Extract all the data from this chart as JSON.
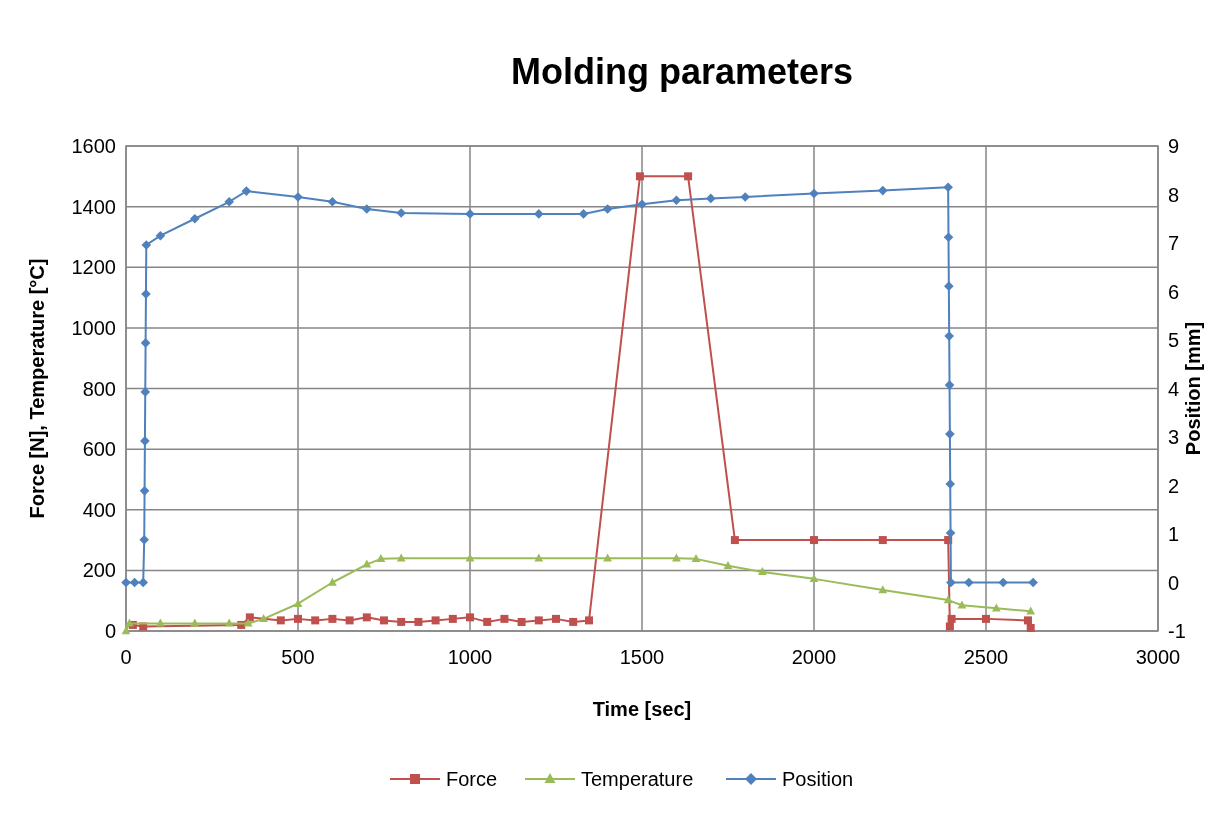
{
  "chart_data": {
    "type": "line",
    "title": "Molding parameters",
    "xlabel": "Time [sec]",
    "ylabel": "Force [N], Temperature [°C]",
    "y2label": "Position [mm]",
    "xlim": [
      0,
      3000
    ],
    "xticks": [
      0,
      500,
      1000,
      1500,
      2000,
      2500,
      3000
    ],
    "ylim": [
      0,
      1600
    ],
    "yticks": [
      0,
      200,
      400,
      600,
      800,
      1000,
      1200,
      1400,
      1600
    ],
    "y2lim": [
      -1,
      9
    ],
    "y2ticks": [
      -1,
      0,
      1,
      2,
      3,
      4,
      5,
      6,
      7,
      8,
      9
    ],
    "grid": true,
    "legend": "bottom",
    "series": [
      {
        "name": "Force",
        "color": "#c0504d",
        "marker": "square",
        "x": [
          20,
          50,
          335,
          360,
          450,
          500,
          550,
          600,
          650,
          700,
          750,
          800,
          850,
          900,
          950,
          1000,
          1050,
          1100,
          1150,
          1200,
          1250,
          1300,
          1346,
          1494,
          1634,
          1770,
          2000,
          2200,
          2390,
          2395,
          2400,
          2500,
          2622,
          2630
        ],
        "values": [
          20,
          15,
          20,
          45,
          35,
          40,
          35,
          40,
          35,
          45,
          35,
          30,
          30,
          35,
          40,
          45,
          30,
          40,
          30,
          35,
          40,
          30,
          35,
          1500,
          1500,
          300,
          300,
          300,
          300,
          15,
          40,
          40,
          35,
          10
        ]
      },
      {
        "name": "Temperature",
        "color": "#9bbb59",
        "marker": "triangle",
        "x": [
          0,
          10,
          100,
          200,
          300,
          355,
          400,
          500,
          600,
          700,
          741,
          800,
          1000,
          1200,
          1400,
          1600,
          1657,
          1750,
          1850,
          2000,
          2200,
          2390,
          2430,
          2530,
          2630
        ],
        "values": [
          0,
          25,
          25,
          25,
          25,
          25,
          40,
          90,
          160,
          220,
          238,
          240,
          240,
          240,
          240,
          240,
          238,
          215,
          195,
          172,
          135,
          102,
          85,
          75,
          65
        ]
      },
      {
        "name": "Position",
        "color": "#4f81bd",
        "marker": "diamond",
        "axis": "y2",
        "x": [
          0,
          25,
          50,
          53,
          54,
          55,
          56,
          57,
          58,
          59,
          100,
          200,
          300,
          350,
          500,
          600,
          700,
          800,
          1000,
          1200,
          1330,
          1400,
          1500,
          1600,
          1700,
          1800,
          2000,
          2200,
          2390,
          2391,
          2392,
          2393,
          2394,
          2395,
          2396,
          2397,
          2398,
          2450,
          2550,
          2637
        ],
        "values": [
          0,
          0,
          0,
          0.88,
          1.89,
          2.92,
          3.93,
          4.94,
          5.95,
          6.96,
          7.15,
          7.5,
          7.85,
          8.07,
          7.95,
          7.85,
          7.7,
          7.62,
          7.6,
          7.6,
          7.6,
          7.7,
          7.8,
          7.88,
          7.92,
          7.95,
          8.02,
          8.08,
          8.15,
          7.12,
          6.11,
          5.08,
          4.07,
          3.06,
          2.03,
          1.02,
          0,
          0,
          0,
          0
        ]
      }
    ]
  }
}
